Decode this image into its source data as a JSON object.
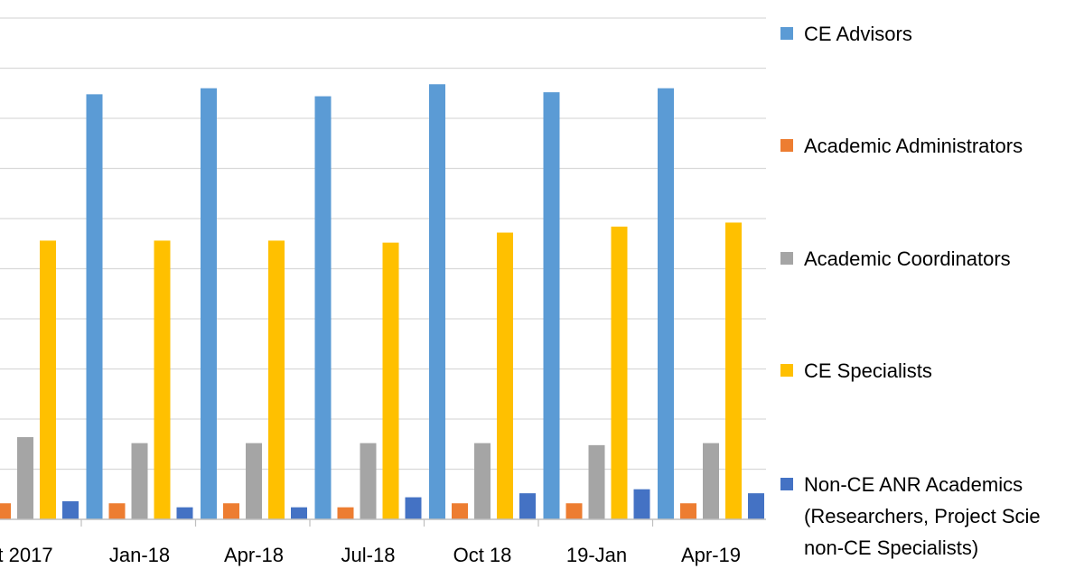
{
  "chart_data": {
    "type": "bar",
    "categories": [
      "t 2017",
      "Jan-18",
      "Apr-18",
      "Jul-18",
      "Oct 18",
      "19-Jan",
      "Apr-19"
    ],
    "series": [
      {
        "name": "CE Advisors",
        "color": "#5b9bd5",
        "values": [
          null,
          212,
          215,
          211,
          217,
          213,
          215
        ]
      },
      {
        "name": "Academic Administrators",
        "color": "#ed7d31",
        "values": [
          8,
          8,
          8,
          6,
          8,
          8,
          8
        ]
      },
      {
        "name": "Academic Coordinators",
        "color": "#a5a5a5",
        "values": [
          41,
          38,
          38,
          38,
          38,
          37,
          38
        ]
      },
      {
        "name": "CE Specialists",
        "color": "#ffc000",
        "values": [
          139,
          139,
          139,
          138,
          143,
          146,
          148
        ]
      },
      {
        "name": "Non-CE ANR Academics",
        "name_line2": "(Researchers, Project Scie",
        "name_line3": "non-CE Specialists)",
        "color": "#4472c4",
        "values": [
          9,
          6,
          6,
          11,
          13,
          15,
          13
        ]
      }
    ],
    "ylim": [
      0,
      250
    ],
    "grid": true,
    "legend": "right",
    "title": "",
    "xlabel": "",
    "ylabel": ""
  }
}
